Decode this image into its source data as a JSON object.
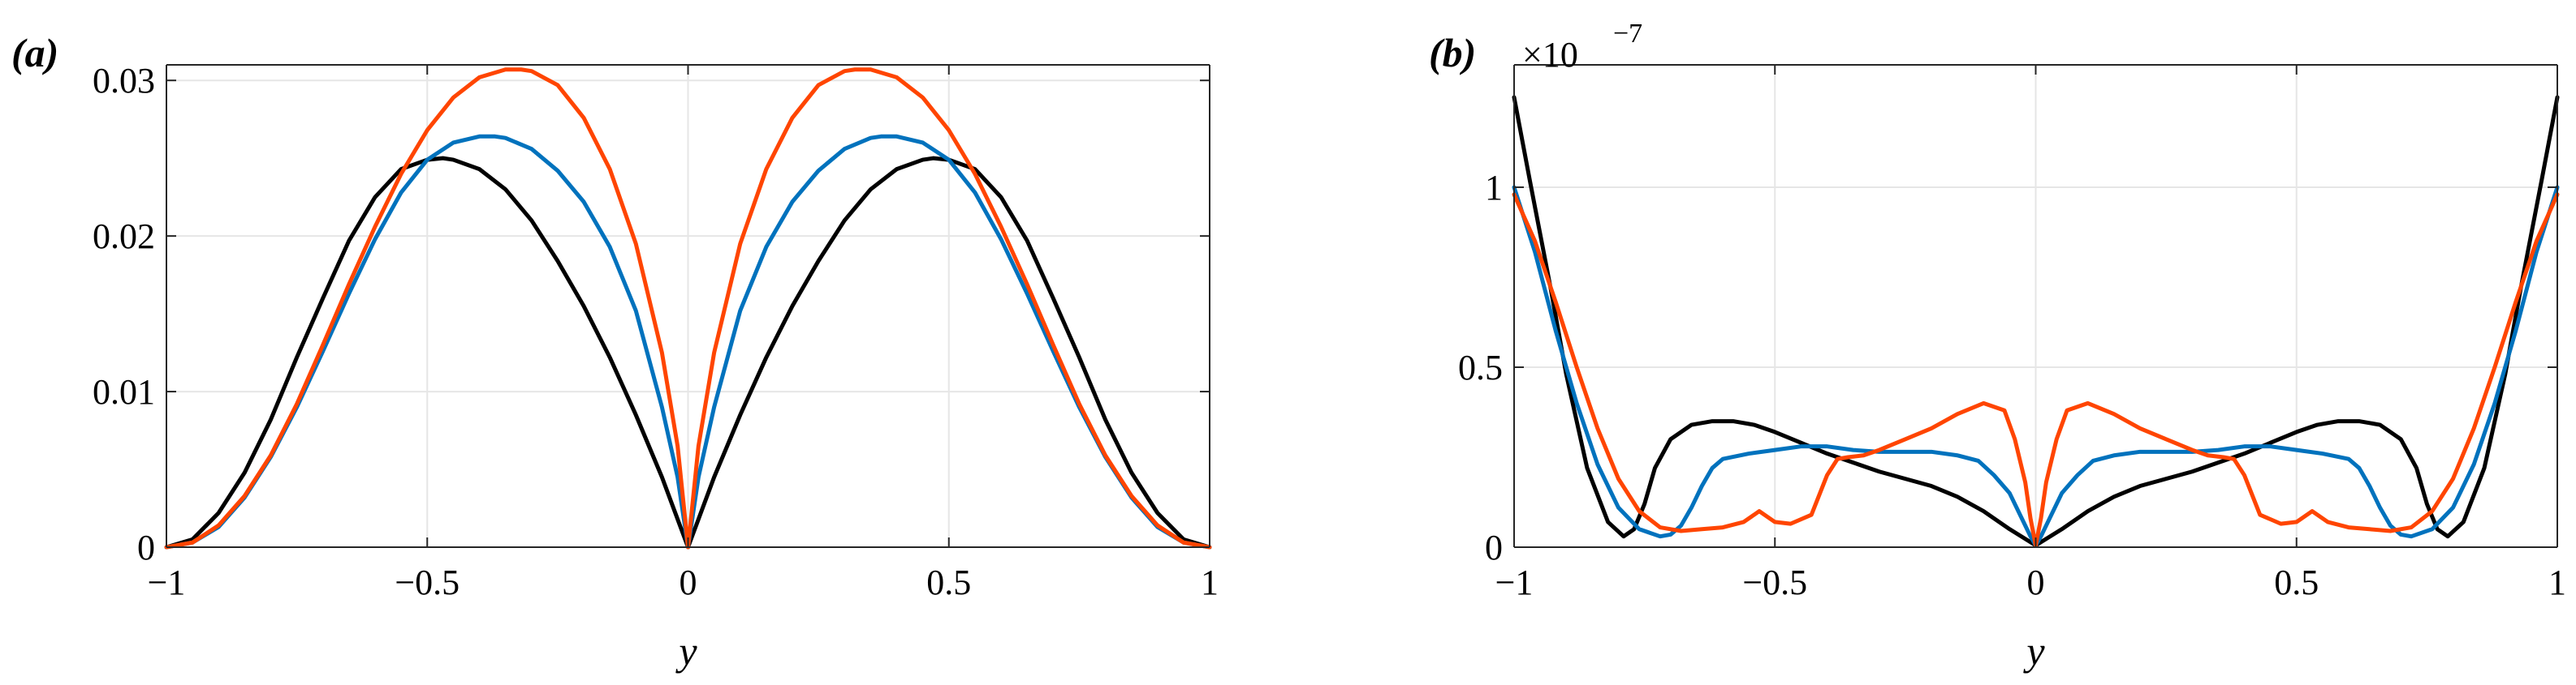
{
  "chart_data": [
    {
      "type": "line",
      "panel_label": "(a)",
      "xlabel": "y",
      "ylabel": "",
      "xlim": [
        -1,
        1
      ],
      "ylim": [
        0,
        0.031
      ],
      "x_ticks": [
        -1,
        -0.5,
        0,
        0.5,
        1
      ],
      "x_tick_labels": [
        "−1",
        "−0.5",
        "0",
        "0.5",
        "1"
      ],
      "y_ticks": [
        0,
        0.01,
        0.02,
        0.03
      ],
      "y_tick_labels": [
        "0",
        "0.01",
        "0.02",
        "0.03"
      ],
      "exponent_label": "",
      "grid": true,
      "box": true,
      "series": [
        {
          "color": "#000000",
          "x": [
            -1,
            -0.95,
            -0.9,
            -0.85,
            -0.8,
            -0.75,
            -0.7,
            -0.65,
            -0.6,
            -0.55,
            -0.5,
            -0.47,
            -0.45,
            -0.4,
            -0.35,
            -0.3,
            -0.25,
            -0.2,
            -0.15,
            -0.1,
            -0.05,
            -0.02,
            0,
            0.02,
            0.05,
            0.1,
            0.15,
            0.2,
            0.25,
            0.3,
            0.35,
            0.4,
            0.45,
            0.47,
            0.5,
            0.55,
            0.6,
            0.65,
            0.7,
            0.75,
            0.8,
            0.85,
            0.9,
            0.95,
            1
          ],
          "y": [
            0,
            0.0005,
            0.0022,
            0.0048,
            0.0082,
            0.0122,
            0.016,
            0.0197,
            0.0225,
            0.0243,
            0.0249,
            0.025,
            0.0249,
            0.0243,
            0.023,
            0.021,
            0.0184,
            0.0155,
            0.0122,
            0.0085,
            0.0045,
            0.0018,
            0,
            0.0018,
            0.0045,
            0.0085,
            0.0122,
            0.0155,
            0.0184,
            0.021,
            0.023,
            0.0243,
            0.0249,
            0.025,
            0.0249,
            0.0243,
            0.0225,
            0.0197,
            0.016,
            0.0122,
            0.0082,
            0.0048,
            0.0022,
            0.0005,
            0
          ]
        },
        {
          "color": "#0072BD",
          "x": [
            -1,
            -0.95,
            -0.9,
            -0.85,
            -0.8,
            -0.75,
            -0.7,
            -0.65,
            -0.6,
            -0.55,
            -0.5,
            -0.45,
            -0.4,
            -0.37,
            -0.35,
            -0.3,
            -0.25,
            -0.2,
            -0.15,
            -0.1,
            -0.05,
            -0.02,
            0,
            0.02,
            0.05,
            0.1,
            0.15,
            0.2,
            0.25,
            0.3,
            0.35,
            0.37,
            0.4,
            0.45,
            0.5,
            0.55,
            0.6,
            0.65,
            0.7,
            0.75,
            0.8,
            0.85,
            0.9,
            0.95,
            1
          ],
          "y": [
            0,
            0.0003,
            0.0013,
            0.0032,
            0.0058,
            0.009,
            0.0126,
            0.0163,
            0.0198,
            0.0228,
            0.0249,
            0.026,
            0.0264,
            0.0264,
            0.0263,
            0.0256,
            0.0242,
            0.0222,
            0.0193,
            0.0152,
            0.009,
            0.0045,
            0,
            0.0045,
            0.009,
            0.0152,
            0.0193,
            0.0222,
            0.0242,
            0.0256,
            0.0263,
            0.0264,
            0.0264,
            0.026,
            0.0249,
            0.0228,
            0.0198,
            0.0163,
            0.0126,
            0.009,
            0.0058,
            0.0032,
            0.0013,
            0.0003,
            0
          ]
        },
        {
          "color": "#FF4500",
          "x": [
            -1,
            -0.95,
            -0.9,
            -0.85,
            -0.8,
            -0.75,
            -0.7,
            -0.65,
            -0.6,
            -0.55,
            -0.5,
            -0.45,
            -0.4,
            -0.35,
            -0.32,
            -0.3,
            -0.25,
            -0.2,
            -0.15,
            -0.1,
            -0.05,
            -0.02,
            0,
            0.02,
            0.05,
            0.1,
            0.15,
            0.2,
            0.25,
            0.3,
            0.32,
            0.35,
            0.4,
            0.45,
            0.5,
            0.55,
            0.6,
            0.65,
            0.7,
            0.75,
            0.8,
            0.85,
            0.9,
            0.95,
            1
          ],
          "y": [
            0,
            0.0003,
            0.0014,
            0.0033,
            0.0059,
            0.0092,
            0.013,
            0.0169,
            0.0206,
            0.024,
            0.0268,
            0.0289,
            0.0302,
            0.0307,
            0.0307,
            0.0306,
            0.0297,
            0.0276,
            0.0243,
            0.0195,
            0.0125,
            0.0065,
            0,
            0.0065,
            0.0125,
            0.0195,
            0.0243,
            0.0276,
            0.0297,
            0.0306,
            0.0307,
            0.0307,
            0.0302,
            0.0289,
            0.0268,
            0.024,
            0.0206,
            0.0169,
            0.013,
            0.0092,
            0.0059,
            0.0033,
            0.0014,
            0.0003,
            0
          ]
        }
      ]
    },
    {
      "type": "line",
      "panel_label": "(b)",
      "xlabel": "y",
      "ylabel": "",
      "xlim": [
        -1,
        1
      ],
      "ylim": [
        0,
        1.34
      ],
      "x_ticks": [
        -1,
        -0.5,
        0,
        0.5,
        1
      ],
      "x_tick_labels": [
        "−1",
        "−0.5",
        "0",
        "0.5",
        "1"
      ],
      "y_ticks": [
        0,
        0.5,
        1
      ],
      "y_tick_labels": [
        "0",
        "0.5",
        "1"
      ],
      "exponent_label": {
        "base": "×10",
        "exponent": "−7"
      },
      "grid": true,
      "box": true,
      "series": [
        {
          "color": "#000000",
          "x": [
            -1,
            -0.97,
            -0.93,
            -0.9,
            -0.86,
            -0.82,
            -0.79,
            -0.77,
            -0.75,
            -0.73,
            -0.7,
            -0.66,
            -0.62,
            -0.58,
            -0.54,
            -0.5,
            -0.45,
            -0.4,
            -0.35,
            -0.3,
            -0.25,
            -0.2,
            -0.15,
            -0.1,
            -0.05,
            0,
            0.05,
            0.1,
            0.15,
            0.2,
            0.25,
            0.3,
            0.35,
            0.4,
            0.45,
            0.5,
            0.54,
            0.58,
            0.62,
            0.66,
            0.7,
            0.73,
            0.75,
            0.77,
            0.79,
            0.82,
            0.86,
            0.9,
            0.93,
            0.97,
            1
          ],
          "y": [
            1.25,
            1.02,
            0.72,
            0.48,
            0.22,
            0.07,
            0.03,
            0.05,
            0.12,
            0.22,
            0.3,
            0.34,
            0.35,
            0.35,
            0.34,
            0.32,
            0.29,
            0.26,
            0.235,
            0.21,
            0.19,
            0.17,
            0.14,
            0.1,
            0.05,
            0.005,
            0.05,
            0.1,
            0.14,
            0.17,
            0.19,
            0.21,
            0.235,
            0.26,
            0.29,
            0.32,
            0.34,
            0.35,
            0.35,
            0.34,
            0.3,
            0.22,
            0.12,
            0.05,
            0.03,
            0.07,
            0.22,
            0.48,
            0.72,
            1.02,
            1.25
          ]
        },
        {
          "color": "#0072BD",
          "x": [
            -1,
            -0.96,
            -0.92,
            -0.88,
            -0.84,
            -0.8,
            -0.76,
            -0.72,
            -0.7,
            -0.68,
            -0.66,
            -0.64,
            -0.62,
            -0.6,
            -0.55,
            -0.5,
            -0.45,
            -0.4,
            -0.35,
            -0.3,
            -0.25,
            -0.2,
            -0.15,
            -0.11,
            -0.08,
            -0.05,
            -0.03,
            -0.01,
            0,
            0.01,
            0.03,
            0.05,
            0.08,
            0.11,
            0.15,
            0.2,
            0.25,
            0.3,
            0.35,
            0.4,
            0.45,
            0.5,
            0.55,
            0.6,
            0.62,
            0.64,
            0.66,
            0.68,
            0.7,
            0.72,
            0.76,
            0.8,
            0.84,
            0.88,
            0.92,
            0.96,
            1
          ],
          "y": [
            1.0,
            0.82,
            0.6,
            0.4,
            0.23,
            0.11,
            0.05,
            0.03,
            0.035,
            0.06,
            0.11,
            0.17,
            0.22,
            0.245,
            0.26,
            0.27,
            0.28,
            0.28,
            0.27,
            0.265,
            0.265,
            0.265,
            0.255,
            0.24,
            0.2,
            0.15,
            0.09,
            0.03,
            0.005,
            0.03,
            0.09,
            0.15,
            0.2,
            0.24,
            0.255,
            0.265,
            0.265,
            0.265,
            0.27,
            0.28,
            0.28,
            0.27,
            0.26,
            0.245,
            0.22,
            0.17,
            0.11,
            0.06,
            0.035,
            0.03,
            0.05,
            0.11,
            0.23,
            0.4,
            0.6,
            0.82,
            1.0
          ]
        },
        {
          "color": "#FF4500",
          "x": [
            -1,
            -0.96,
            -0.92,
            -0.88,
            -0.84,
            -0.8,
            -0.76,
            -0.72,
            -0.68,
            -0.64,
            -0.6,
            -0.56,
            -0.53,
            -0.5,
            -0.47,
            -0.43,
            -0.4,
            -0.38,
            -0.36,
            -0.33,
            -0.3,
            -0.25,
            -0.2,
            -0.15,
            -0.1,
            -0.06,
            -0.04,
            -0.02,
            -0.01,
            0,
            0.01,
            0.02,
            0.04,
            0.06,
            0.1,
            0.15,
            0.2,
            0.25,
            0.3,
            0.33,
            0.36,
            0.38,
            0.4,
            0.43,
            0.47,
            0.5,
            0.53,
            0.56,
            0.6,
            0.64,
            0.68,
            0.72,
            0.76,
            0.8,
            0.84,
            0.88,
            0.92,
            0.96,
            1
          ],
          "y": [
            0.98,
            0.85,
            0.68,
            0.5,
            0.33,
            0.19,
            0.1,
            0.055,
            0.045,
            0.05,
            0.055,
            0.07,
            0.1,
            0.07,
            0.065,
            0.09,
            0.2,
            0.245,
            0.25,
            0.255,
            0.27,
            0.3,
            0.33,
            0.37,
            0.4,
            0.38,
            0.3,
            0.18,
            0.08,
            0.005,
            0.08,
            0.18,
            0.3,
            0.38,
            0.4,
            0.37,
            0.33,
            0.3,
            0.27,
            0.255,
            0.25,
            0.245,
            0.2,
            0.09,
            0.065,
            0.07,
            0.1,
            0.07,
            0.055,
            0.05,
            0.045,
            0.055,
            0.1,
            0.19,
            0.33,
            0.5,
            0.68,
            0.85,
            0.98
          ]
        }
      ]
    }
  ]
}
